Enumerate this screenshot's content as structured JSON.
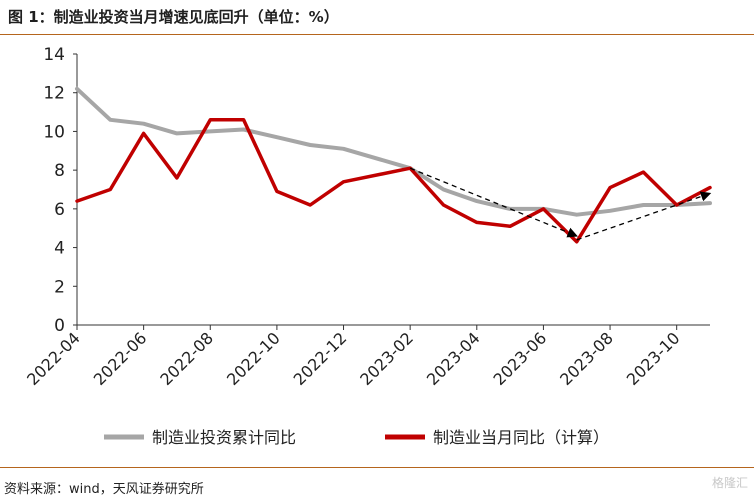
{
  "header": {
    "title": "图 1：制造业投资当月增速见底回升（单位：%）"
  },
  "footer": {
    "source": "资料来源：wind，天风证券研究所",
    "watermark": "格隆汇"
  },
  "chart_data": {
    "type": "line",
    "title": "图 1：制造业投资当月增速见底回升（单位：%）",
    "xlabel": "",
    "ylabel": "",
    "ylim": [
      0,
      14
    ],
    "yticks": [
      0,
      2,
      4,
      6,
      8,
      10,
      12,
      14
    ],
    "x": [
      "2022-04",
      "2022-05",
      "2022-06",
      "2022-07",
      "2022-08",
      "2022-09",
      "2022-10",
      "2022-11",
      "2022-12",
      "2023-01",
      "2023-02",
      "2023-03",
      "2023-04",
      "2023-05",
      "2023-06",
      "2023-07",
      "2023-08",
      "2023-09",
      "2023-10",
      "2023-11"
    ],
    "xtick_labels": [
      "2022-04",
      "2022-06",
      "2022-08",
      "2022-10",
      "2022-12",
      "2023-02",
      "2023-04",
      "2023-06",
      "2023-08",
      "2023-10"
    ],
    "grid": false,
    "legend_position": "bottom",
    "series": [
      {
        "name": "制造业投资累计同比",
        "color": "#a6a6a6",
        "values": [
          12.2,
          10.6,
          10.4,
          9.9,
          10.0,
          10.1,
          9.7,
          9.3,
          9.1,
          null,
          8.1,
          7.0,
          6.4,
          6.0,
          6.0,
          5.7,
          5.9,
          6.2,
          6.2,
          6.3
        ]
      },
      {
        "name": "制造业当月同比（计算）",
        "color": "#c00000",
        "values": [
          6.4,
          7.0,
          9.9,
          7.6,
          10.6,
          10.6,
          6.9,
          6.2,
          7.4,
          null,
          8.1,
          6.2,
          5.3,
          5.1,
          6.0,
          4.3,
          7.1,
          7.9,
          6.2,
          7.1
        ]
      }
    ],
    "annotations": [
      {
        "type": "dashed-arrow",
        "from": [
          "2023-02",
          8.1
        ],
        "to": [
          "2023-07",
          4.6
        ]
      },
      {
        "type": "dashed-arrow",
        "from": [
          "2023-07",
          4.4
        ],
        "to": [
          "2023-11",
          6.8
        ]
      }
    ]
  }
}
